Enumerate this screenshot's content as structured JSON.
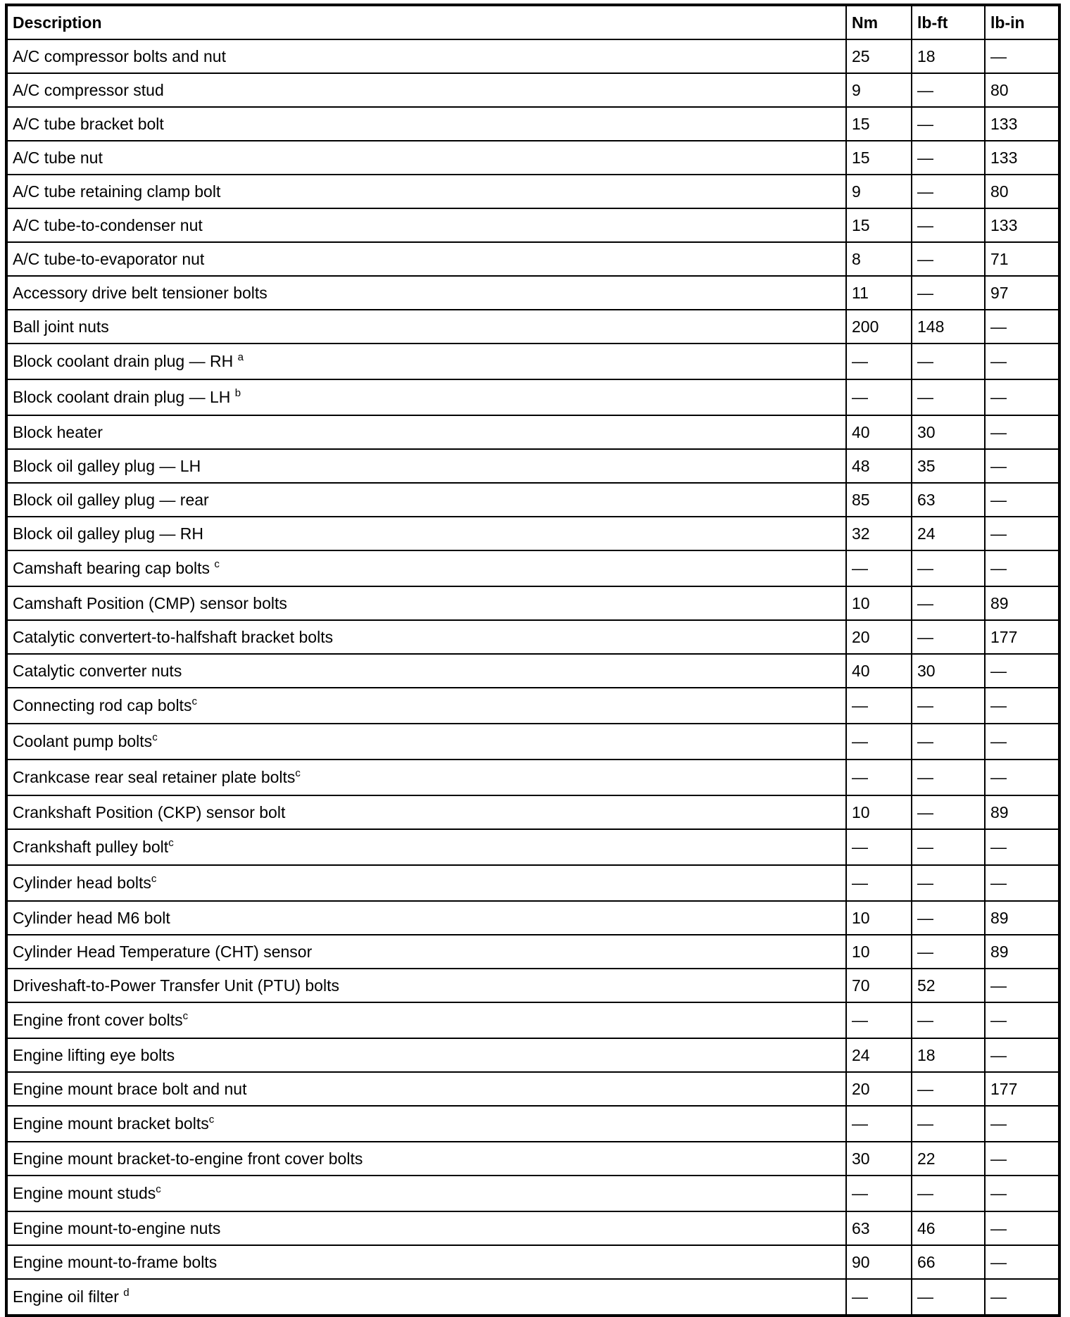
{
  "headers": [
    "Description",
    "Nm",
    "lb-ft",
    "lb-in"
  ],
  "rows": [
    {
      "desc": "A/C compressor bolts and nut",
      "sup": "",
      "nm": "25",
      "lbft": "18",
      "lbin": "—"
    },
    {
      "desc": "A/C compressor stud",
      "sup": "",
      "nm": "9",
      "lbft": "—",
      "lbin": "80"
    },
    {
      "desc": "A/C tube bracket bolt",
      "sup": "",
      "nm": "15",
      "lbft": "—",
      "lbin": "133"
    },
    {
      "desc": "A/C tube nut",
      "sup": "",
      "nm": "15",
      "lbft": "—",
      "lbin": "133"
    },
    {
      "desc": "A/C tube retaining clamp bolt",
      "sup": "",
      "nm": "9",
      "lbft": "—",
      "lbin": "80"
    },
    {
      "desc": "A/C tube-to-condenser nut",
      "sup": "",
      "nm": "15",
      "lbft": "—",
      "lbin": "133"
    },
    {
      "desc": "A/C tube-to-evaporator nut",
      "sup": "",
      "nm": "8",
      "lbft": "—",
      "lbin": "71"
    },
    {
      "desc": "Accessory drive belt tensioner bolts",
      "sup": "",
      "nm": "11",
      "lbft": "—",
      "lbin": "97"
    },
    {
      "desc": "Ball joint nuts",
      "sup": "",
      "nm": "200",
      "lbft": "148",
      "lbin": "—"
    },
    {
      "desc": "Block coolant drain plug — RH ",
      "sup": "a",
      "nm": "—",
      "lbft": "—",
      "lbin": "—"
    },
    {
      "desc": "Block coolant drain plug — LH ",
      "sup": "b",
      "nm": "—",
      "lbft": "—",
      "lbin": "—"
    },
    {
      "desc": "Block heater",
      "sup": "",
      "nm": "40",
      "lbft": "30",
      "lbin": "—"
    },
    {
      "desc": "Block oil galley plug — LH",
      "sup": "",
      "nm": "48",
      "lbft": "35",
      "lbin": "—"
    },
    {
      "desc": "Block oil galley plug — rear",
      "sup": "",
      "nm": "85",
      "lbft": "63",
      "lbin": "—"
    },
    {
      "desc": "Block oil galley plug — RH",
      "sup": "",
      "nm": "32",
      "lbft": "24",
      "lbin": "—"
    },
    {
      "desc": "Camshaft bearing cap bolts ",
      "sup": "c",
      "nm": "—",
      "lbft": "—",
      "lbin": "—"
    },
    {
      "desc": "Camshaft Position (CMP) sensor bolts",
      "sup": "",
      "nm": "10",
      "lbft": "—",
      "lbin": "89"
    },
    {
      "desc": "Catalytic convertert-to-halfshaft bracket bolts",
      "sup": "",
      "nm": "20",
      "lbft": "—",
      "lbin": "177"
    },
    {
      "desc": "Catalytic converter nuts",
      "sup": "",
      "nm": "40",
      "lbft": "30",
      "lbin": "—"
    },
    {
      "desc": "Connecting rod cap bolts",
      "sup": "c",
      "nm": "—",
      "lbft": "—",
      "lbin": "—"
    },
    {
      "desc": "Coolant pump bolts",
      "sup": "c",
      "nm": "—",
      "lbft": "—",
      "lbin": "—"
    },
    {
      "desc": "Crankcase rear seal retainer plate bolts",
      "sup": "c",
      "nm": "—",
      "lbft": "—",
      "lbin": "—"
    },
    {
      "desc": "Crankshaft Position (CKP) sensor bolt",
      "sup": "",
      "nm": "10",
      "lbft": "—",
      "lbin": "89"
    },
    {
      "desc": "Crankshaft pulley bolt",
      "sup": "c",
      "nm": "—",
      "lbft": "—",
      "lbin": "—"
    },
    {
      "desc": "Cylinder head bolts",
      "sup": "c",
      "nm": "—",
      "lbft": "—",
      "lbin": "—"
    },
    {
      "desc": "Cylinder head M6 bolt",
      "sup": "",
      "nm": "10",
      "lbft": "—",
      "lbin": "89"
    },
    {
      "desc": "Cylinder Head Temperature (CHT) sensor",
      "sup": "",
      "nm": "10",
      "lbft": "—",
      "lbin": "89"
    },
    {
      "desc": "Driveshaft-to-Power Transfer Unit (PTU) bolts",
      "sup": "",
      "nm": "70",
      "lbft": "52",
      "lbin": "—"
    },
    {
      "desc": "Engine front cover bolts",
      "sup": "c",
      "nm": "—",
      "lbft": "—",
      "lbin": "—"
    },
    {
      "desc": "Engine lifting eye bolts",
      "sup": "",
      "nm": "24",
      "lbft": "18",
      "lbin": "—"
    },
    {
      "desc": "Engine mount brace bolt and nut",
      "sup": "",
      "nm": "20",
      "lbft": "—",
      "lbin": "177"
    },
    {
      "desc": "Engine mount bracket bolts",
      "sup": "c",
      "nm": "—",
      "lbft": "—",
      "lbin": "—"
    },
    {
      "desc": "Engine mount bracket-to-engine front cover bolts",
      "sup": "",
      "nm": "30",
      "lbft": "22",
      "lbin": "—"
    },
    {
      "desc": "Engine mount studs",
      "sup": "c",
      "nm": "—",
      "lbft": "—",
      "lbin": "—"
    },
    {
      "desc": "Engine mount-to-engine nuts",
      "sup": "",
      "nm": "63",
      "lbft": "46",
      "lbin": "—"
    },
    {
      "desc": "Engine mount-to-frame bolts",
      "sup": "",
      "nm": "90",
      "lbft": "66",
      "lbin": "—"
    },
    {
      "desc": "Engine oil filter ",
      "sup": "d",
      "nm": "—",
      "lbft": "—",
      "lbin": "—"
    }
  ]
}
